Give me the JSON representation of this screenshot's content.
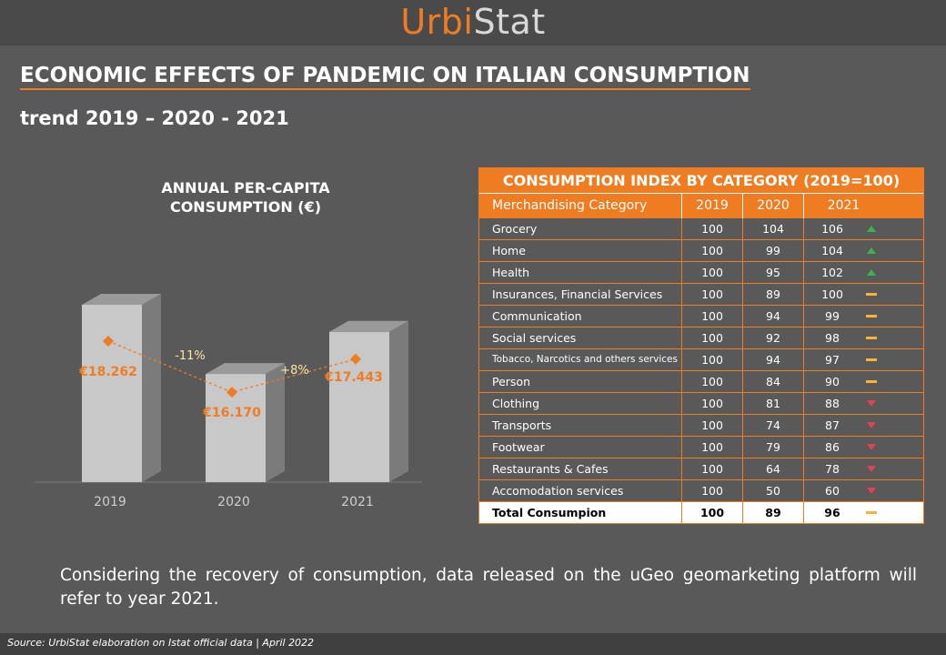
{
  "brand": {
    "part1": "Urbi",
    "part2": "Stat"
  },
  "title": "ECONOMIC EFFECTS OF PANDEMIC ON ITALIAN CONSUMPTION",
  "subtitle": "trend 2019 – 2020 - 2021",
  "chart_data": {
    "type": "bar",
    "title_line1": "ANNUAL PER-CAPITA",
    "title_line2": "CONSUMPTION (€)",
    "categories": [
      "2019",
      "2020",
      "2021"
    ],
    "values": [
      18262,
      16170,
      17443
    ],
    "value_labels": [
      "€18.262",
      "€16.170",
      "€17.443"
    ],
    "changes": [
      "-11%",
      "+8%"
    ],
    "colors": {
      "bar": "#c8c8c8",
      "line": "#f07c22",
      "change": "#f9e79f"
    }
  },
  "table": {
    "title": "CONSUMPTION INDEX BY CATEGORY (2019=100)",
    "headers": [
      "Merchandising Category",
      "2019",
      "2020",
      "2021"
    ],
    "rows": [
      {
        "category": "Grocery",
        "y2019": "100",
        "y2020": "104",
        "y2021": "106",
        "trend": "up"
      },
      {
        "category": "Home",
        "y2019": "100",
        "y2020": "99",
        "y2021": "104",
        "trend": "up"
      },
      {
        "category": "Health",
        "y2019": "100",
        "y2020": "95",
        "y2021": "102",
        "trend": "up"
      },
      {
        "category": "Insurances, Financial Services",
        "y2019": "100",
        "y2020": "89",
        "y2021": "100",
        "trend": "flat"
      },
      {
        "category": "Communication",
        "y2019": "100",
        "y2020": "94",
        "y2021": "99",
        "trend": "flat"
      },
      {
        "category": "Social services",
        "y2019": "100",
        "y2020": "92",
        "y2021": "98",
        "trend": "flat"
      },
      {
        "category": "Tobacco, Narcotics and others services",
        "y2019": "100",
        "y2020": "94",
        "y2021": "97",
        "trend": "flat"
      },
      {
        "category": "Person",
        "y2019": "100",
        "y2020": "84",
        "y2021": "90",
        "trend": "flat"
      },
      {
        "category": "Clothing",
        "y2019": "100",
        "y2020": "81",
        "y2021": "88",
        "trend": "down"
      },
      {
        "category": "Transports",
        "y2019": "100",
        "y2020": "74",
        "y2021": "87",
        "trend": "down"
      },
      {
        "category": "Footwear",
        "y2019": "100",
        "y2020": "79",
        "y2021": "86",
        "trend": "down"
      },
      {
        "category": "Restaurants & Cafes",
        "y2019": "100",
        "y2020": "64",
        "y2021": "78",
        "trend": "down"
      },
      {
        "category": "Accomodation services",
        "y2019": "100",
        "y2020": "50",
        "y2021": "60",
        "trend": "down"
      }
    ],
    "total": {
      "category": "Total Consumpion",
      "y2019": "100",
      "y2020": "89",
      "y2021": "96",
      "trend": "flat"
    }
  },
  "note": "Considering the recovery of consumption, data released on the uGeo geomarketing platform will refer to year 2021.",
  "source": "Source: UrbiStat elaboration on Istat official data | April 2022"
}
